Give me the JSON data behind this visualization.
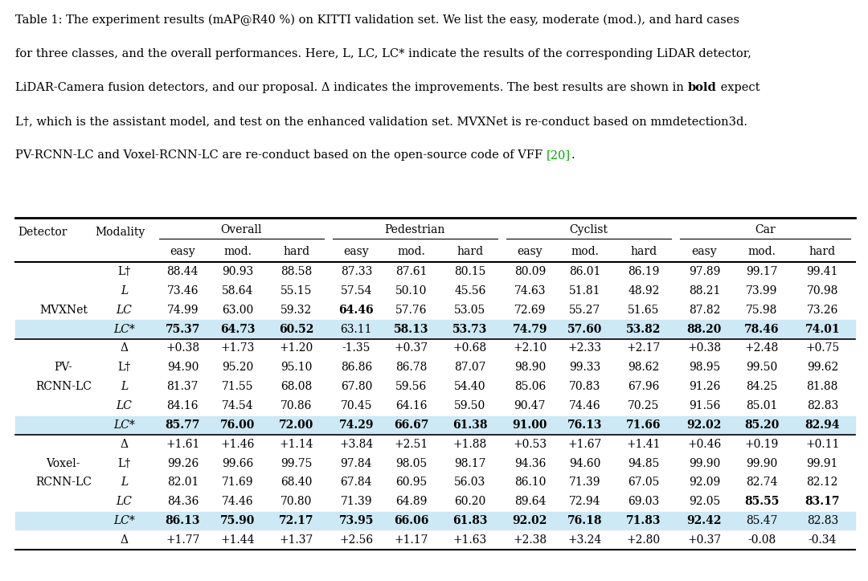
{
  "caption_lines": [
    {
      "text": "Table 1: The experiment results (mAP@R40 %) on KITTI validation set. We list the easy, moderate (mod.), and hard cases",
      "bold_word": null,
      "green_word": null
    },
    {
      "text": "for three classes, and the overall performances. Here, L, LC, LC* indicate the results of the corresponding LiDAR detector,",
      "bold_word": null,
      "green_word": null
    },
    {
      "text": "LiDAR-Camera fusion detectors, and our proposal. Δ indicates the improvements. The best results are shown in bold expect",
      "bold_word": "bold",
      "green_word": null
    },
    {
      "text": "L†, which is the assistant model, and test on the enhanced validation set. MVXNet is re-conduct based on mmdetection3d.",
      "bold_word": null,
      "green_word": null
    },
    {
      "text": "PV-RCNN-LC and Voxel-RCNN-LC are re-conduct based on the open-source code of VFF [20].",
      "bold_word": null,
      "green_word": "[20]"
    }
  ],
  "group_headers": [
    "Overall",
    "Pedestrian",
    "Cyclist",
    "Car"
  ],
  "sub_headers": [
    "easy",
    "mod.",
    "hard",
    "easy",
    "mod.",
    "hard",
    "easy",
    "mod.",
    "hard",
    "easy",
    "mod.",
    "hard"
  ],
  "highlight_color": "#cce9f5",
  "rows": [
    {
      "detector": "",
      "modality": "L†",
      "italic": false,
      "vals": [
        "88.44",
        "90.93",
        "88.58",
        "87.33",
        "87.61",
        "80.15",
        "80.09",
        "86.01",
        "86.19",
        "97.89",
        "99.17",
        "99.41"
      ],
      "bold": [],
      "highlight": false
    },
    {
      "detector": "",
      "modality": "L",
      "italic": true,
      "vals": [
        "73.46",
        "58.64",
        "55.15",
        "57.54",
        "50.10",
        "45.56",
        "74.63",
        "51.81",
        "48.92",
        "88.21",
        "73.99",
        "70.98"
      ],
      "bold": [],
      "highlight": false
    },
    {
      "detector": "MVXNet",
      "modality": "LC",
      "italic": true,
      "vals": [
        "74.99",
        "63.00",
        "59.32",
        "64.46",
        "57.76",
        "53.05",
        "72.69",
        "55.27",
        "51.65",
        "87.82",
        "75.98",
        "73.26"
      ],
      "bold": [
        3
      ],
      "highlight": false
    },
    {
      "detector": "",
      "modality": "LC*",
      "italic": true,
      "vals": [
        "75.37",
        "64.73",
        "60.52",
        "63.11",
        "58.13",
        "53.73",
        "74.79",
        "57.60",
        "53.82",
        "88.20",
        "78.46",
        "74.01"
      ],
      "bold": [
        0,
        1,
        2,
        4,
        5,
        6,
        7,
        8,
        9,
        10,
        11
      ],
      "highlight": true
    },
    {
      "detector": "",
      "modality": "Δ",
      "italic": false,
      "vals": [
        "+0.38",
        "+1.73",
        "+1.20",
        "-1.35",
        "+0.37",
        "+0.68",
        "+2.10",
        "+2.33",
        "+2.17",
        "+0.38",
        "+2.48",
        "+0.75"
      ],
      "bold": [],
      "highlight": false
    },
    {
      "detector": "PV-",
      "modality": "L†",
      "italic": false,
      "vals": [
        "94.90",
        "95.20",
        "95.10",
        "86.86",
        "86.78",
        "87.07",
        "98.90",
        "99.33",
        "98.62",
        "98.95",
        "99.50",
        "99.62"
      ],
      "bold": [],
      "highlight": false
    },
    {
      "detector": "RCNN-LC",
      "modality": "L",
      "italic": true,
      "vals": [
        "81.37",
        "71.55",
        "68.08",
        "67.80",
        "59.56",
        "54.40",
        "85.06",
        "70.83",
        "67.96",
        "91.26",
        "84.25",
        "81.88"
      ],
      "bold": [],
      "highlight": false
    },
    {
      "detector": "",
      "modality": "LC",
      "italic": true,
      "vals": [
        "84.16",
        "74.54",
        "70.86",
        "70.45",
        "64.16",
        "59.50",
        "90.47",
        "74.46",
        "70.25",
        "91.56",
        "85.01",
        "82.83"
      ],
      "bold": [],
      "highlight": false
    },
    {
      "detector": "",
      "modality": "LC*",
      "italic": true,
      "vals": [
        "85.77",
        "76.00",
        "72.00",
        "74.29",
        "66.67",
        "61.38",
        "91.00",
        "76.13",
        "71.66",
        "92.02",
        "85.20",
        "82.94"
      ],
      "bold": [
        0,
        1,
        2,
        3,
        4,
        5,
        6,
        7,
        8,
        9,
        10,
        11
      ],
      "highlight": true
    },
    {
      "detector": "",
      "modality": "Δ",
      "italic": false,
      "vals": [
        "+1.61",
        "+1.46",
        "+1.14",
        "+3.84",
        "+2.51",
        "+1.88",
        "+0.53",
        "+1.67",
        "+1.41",
        "+0.46",
        "+0.19",
        "+0.11"
      ],
      "bold": [],
      "highlight": false
    },
    {
      "detector": "Voxel-",
      "modality": "L†",
      "italic": false,
      "vals": [
        "99.26",
        "99.66",
        "99.75",
        "97.84",
        "98.05",
        "98.17",
        "94.36",
        "94.60",
        "94.85",
        "99.90",
        "99.90",
        "99.91"
      ],
      "bold": [],
      "highlight": false
    },
    {
      "detector": "RCNN-LC",
      "modality": "L",
      "italic": true,
      "vals": [
        "82.01",
        "71.69",
        "68.40",
        "67.84",
        "60.95",
        "56.03",
        "86.10",
        "71.39",
        "67.05",
        "92.09",
        "82.74",
        "82.12"
      ],
      "bold": [],
      "highlight": false
    },
    {
      "detector": "",
      "modality": "LC",
      "italic": true,
      "vals": [
        "84.36",
        "74.46",
        "70.80",
        "71.39",
        "64.89",
        "60.20",
        "89.64",
        "72.94",
        "69.03",
        "92.05",
        "85.55",
        "83.17"
      ],
      "bold": [
        10,
        11
      ],
      "highlight": false
    },
    {
      "detector": "",
      "modality": "LC*",
      "italic": true,
      "vals": [
        "86.13",
        "75.90",
        "72.17",
        "73.95",
        "66.06",
        "61.83",
        "92.02",
        "76.18",
        "71.83",
        "92.42",
        "85.47",
        "82.83"
      ],
      "bold": [
        0,
        1,
        2,
        3,
        4,
        5,
        6,
        7,
        8,
        9
      ],
      "highlight": true
    },
    {
      "detector": "",
      "modality": "Δ",
      "italic": false,
      "vals": [
        "+1.77",
        "+1.44",
        "+1.37",
        "+2.56",
        "+1.17",
        "+1.63",
        "+2.38",
        "+3.24",
        "+2.80",
        "+0.37",
        "-0.08",
        "-0.34"
      ],
      "bold": [],
      "highlight": false
    }
  ],
  "sep_after_rows": [
    4,
    9
  ],
  "cap_fontsize": 10.5,
  "table_fontsize": 10.0,
  "fig_width": 10.8,
  "fig_height": 7.23,
  "dpi": 100
}
